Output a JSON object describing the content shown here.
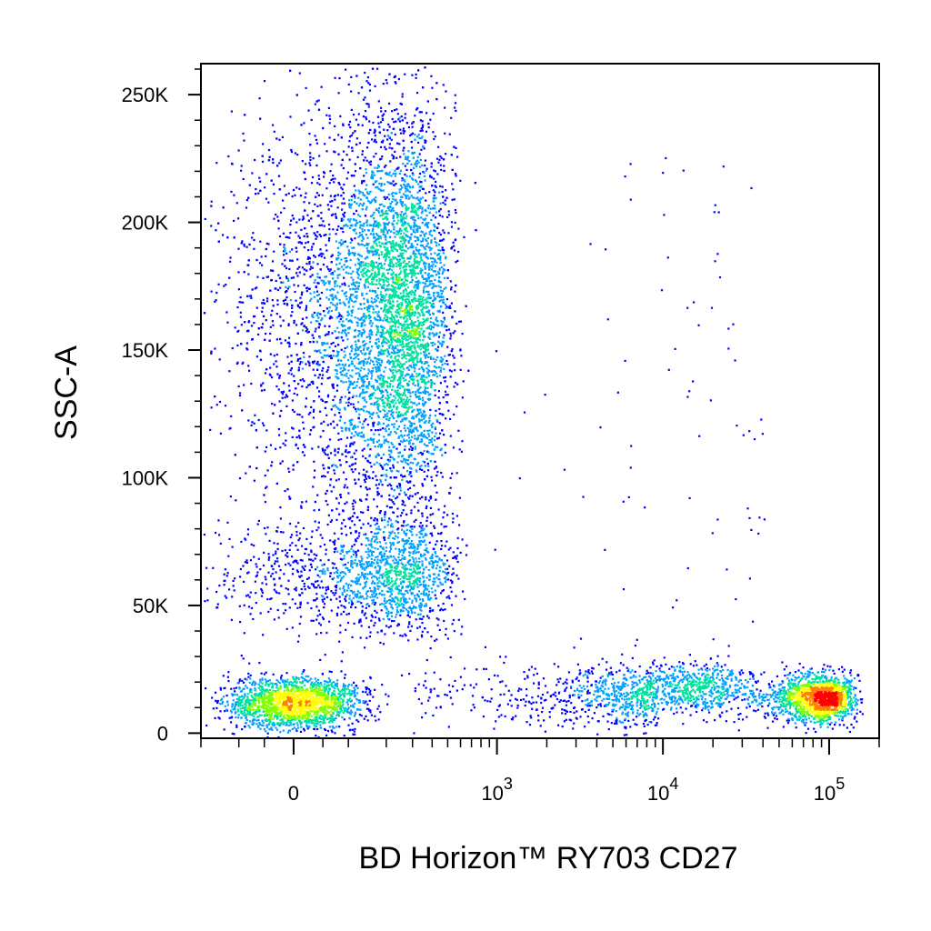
{
  "chart_data": {
    "type": "scatter",
    "subtype": "flow-cytometry-density-dot-plot",
    "title": "",
    "xlabel": "BD Horizon™ RY703 CD27",
    "ylabel": "SSC-A",
    "x_scale": "biexponential",
    "y_scale": "linear",
    "xlim": [
      -200,
      200000
    ],
    "ylim": [
      -2000,
      262144
    ],
    "x_ticks": [
      {
        "value": 0,
        "base": "0",
        "exp": ""
      },
      {
        "value": 1000,
        "base": "10",
        "exp": "3"
      },
      {
        "value": 10000,
        "base": "10",
        "exp": "4"
      },
      {
        "value": 100000,
        "base": "10",
        "exp": "5"
      }
    ],
    "y_ticks": [
      {
        "value": 0,
        "label": "0"
      },
      {
        "value": 50000,
        "label": "50K"
      },
      {
        "value": 100000,
        "label": "100K"
      },
      {
        "value": 150000,
        "label": "150K"
      },
      {
        "value": 200000,
        "label": "200K"
      },
      {
        "value": 250000,
        "label": "250K"
      }
    ],
    "color_scale": [
      "#0000ff",
      "#00a0ff",
      "#00e0a0",
      "#80ff00",
      "#ffff00",
      "#ff8000",
      "#ff0000"
    ],
    "grid": false,
    "legend": "none",
    "populations": [
      {
        "x_center": 0,
        "x_sd": 60,
        "y_center": 12000,
        "y_sd": 5000,
        "count": 1900
      },
      {
        "x_center": 190,
        "x_sd": 150,
        "y_center": 62000,
        "y_sd": 11000,
        "count": 1500
      },
      {
        "x_center": 200,
        "x_sd": 140,
        "y_center": 165000,
        "y_sd": 40000,
        "count": 6500
      },
      {
        "x_center": 85000,
        "x_sd": 25000,
        "y_center": 14000,
        "y_sd": 4500,
        "count": 1600
      },
      {
        "x_center": 12000,
        "x_sd": 9000,
        "y_center": 18000,
        "y_sd": 5000,
        "count": 900
      }
    ]
  }
}
